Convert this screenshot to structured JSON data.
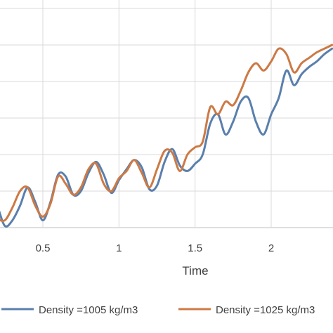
{
  "chart_data": {
    "type": "line",
    "title": "",
    "xlabel": "Time",
    "ylabel": "",
    "xlim": [
      0.0,
      2.4
    ],
    "ylim": [
      0,
      6
    ],
    "x_ticks": [
      0.5,
      1,
      1.5,
      2
    ],
    "x_tick_labels": [
      "0.5",
      "1",
      "1.5",
      "2"
    ],
    "grid": true,
    "legend_position": "bottom",
    "series": [
      {
        "name": "Density =1005 kg/m3",
        "color": "#5a7fad",
        "x": [
          0.0,
          0.05,
          0.1,
          0.15,
          0.2,
          0.25,
          0.3,
          0.35,
          0.4,
          0.45,
          0.5,
          0.55,
          0.6,
          0.65,
          0.7,
          0.75,
          0.8,
          0.85,
          0.9,
          0.95,
          1.0,
          1.05,
          1.1,
          1.15,
          1.2,
          1.25,
          1.3,
          1.35,
          1.4,
          1.45,
          1.5,
          1.55,
          1.6,
          1.65,
          1.7,
          1.75,
          1.8,
          1.85,
          1.9,
          1.95,
          2.0,
          2.05,
          2.1,
          2.15,
          2.2,
          2.25,
          2.3,
          2.35,
          2.4
        ],
        "y": [
          0.4,
          0.3,
          1.0,
          1.0,
          0.6,
          0.05,
          0.2,
          0.6,
          1.1,
          0.7,
          0.2,
          0.7,
          1.45,
          1.4,
          0.9,
          1.0,
          1.5,
          1.8,
          1.45,
          0.95,
          1.3,
          1.6,
          1.85,
          1.65,
          1.05,
          1.15,
          1.8,
          2.15,
          1.7,
          1.55,
          1.75,
          2.0,
          2.85,
          3.1,
          2.55,
          2.9,
          3.45,
          3.55,
          2.9,
          2.55,
          3.1,
          3.55,
          4.3,
          3.9,
          4.2,
          4.4,
          4.55,
          4.75,
          4.9
        ]
      },
      {
        "name": "Density =1025 kg/m3",
        "color": "#cc7a45",
        "x": [
          0.0,
          0.05,
          0.1,
          0.15,
          0.2,
          0.25,
          0.3,
          0.35,
          0.4,
          0.45,
          0.5,
          0.55,
          0.6,
          0.65,
          0.7,
          0.75,
          0.8,
          0.85,
          0.9,
          0.95,
          1.0,
          1.05,
          1.1,
          1.15,
          1.2,
          1.25,
          1.3,
          1.35,
          1.4,
          1.45,
          1.5,
          1.55,
          1.6,
          1.65,
          1.7,
          1.75,
          1.8,
          1.85,
          1.9,
          1.95,
          2.0,
          2.05,
          2.1,
          2.15,
          2.2,
          2.25,
          2.3,
          2.35,
          2.4
        ],
        "y": [
          0.5,
          0.5,
          1.1,
          0.85,
          0.3,
          0.2,
          0.55,
          1.0,
          1.1,
          0.6,
          0.3,
          0.65,
          1.4,
          1.2,
          0.9,
          1.1,
          1.6,
          1.75,
          1.2,
          1.0,
          1.35,
          1.55,
          1.85,
          1.5,
          1.1,
          1.6,
          2.1,
          2.05,
          1.55,
          2.0,
          2.2,
          2.35,
          3.3,
          3.1,
          3.45,
          3.35,
          3.75,
          4.25,
          4.5,
          4.3,
          4.55,
          4.9,
          4.75,
          4.25,
          4.5,
          4.65,
          4.8,
          4.9,
          5.0
        ]
      }
    ]
  }
}
